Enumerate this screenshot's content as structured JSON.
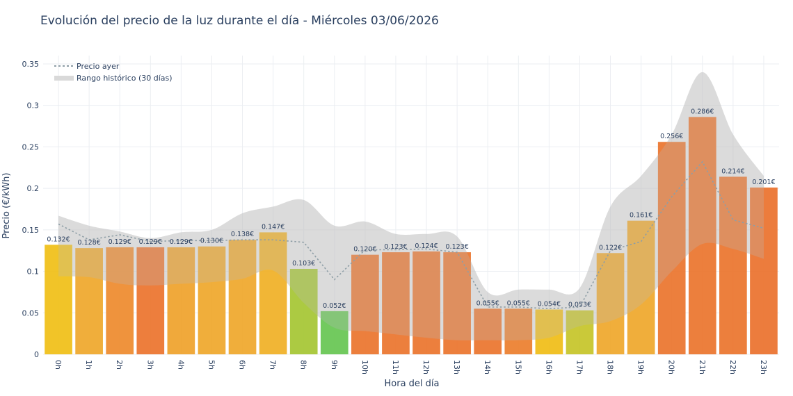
{
  "chart_data": {
    "type": "bar",
    "title": "Evolución del precio de la luz durante el día - Miércoles 03/06/2026",
    "xlabel": "Hora del día",
    "ylabel": "Precio (€/kWh)",
    "ylim": [
      0,
      0.36
    ],
    "yticks": [
      0,
      0.05,
      0.1,
      0.15,
      0.2,
      0.25,
      0.3,
      0.35
    ],
    "ytick_labels": [
      "0",
      "0.05",
      "0.1",
      "0.15",
      "0.2",
      "0.25",
      "0.3",
      "0.35"
    ],
    "grid": true,
    "legend_position": "top-left",
    "categories": [
      "0h",
      "1h",
      "2h",
      "3h",
      "4h",
      "5h",
      "6h",
      "7h",
      "8h",
      "9h",
      "10h",
      "11h",
      "12h",
      "13h",
      "14h",
      "15h",
      "16h",
      "17h",
      "18h",
      "19h",
      "20h",
      "21h",
      "22h",
      "23h"
    ],
    "values": [
      0.132,
      0.128,
      0.129,
      0.129,
      0.129,
      0.13,
      0.138,
      0.147,
      0.103,
      0.052,
      0.12,
      0.123,
      0.124,
      0.123,
      0.055,
      0.055,
      0.054,
      0.053,
      0.122,
      0.161,
      0.256,
      0.286,
      0.214,
      0.201
    ],
    "value_labels": [
      "0.132€",
      "0.128€",
      "0.129€",
      "0.129€",
      "0.129€",
      "0.130€",
      "0.138€",
      "0.147€",
      "0.103€",
      "0.052€",
      "0.120€",
      "0.123€",
      "0.124€",
      "0.123€",
      "0.055€",
      "0.055€",
      "0.054€",
      "0.053€",
      "0.122€",
      "0.161€",
      "0.256€",
      "0.286€",
      "0.214€",
      "0.201€"
    ],
    "bar_colors": [
      "#f0bf16",
      "#efa72a",
      "#ee8a2c",
      "#eb732c",
      "#efa22a",
      "#efa72a",
      "#efa72a",
      "#f0b025",
      "#a5c532",
      "#66c651",
      "#ea742c",
      "#ea742c",
      "#ea742c",
      "#ea742c",
      "#ea742c",
      "#eb7e2c",
      "#f0bd16",
      "#c5c428",
      "#efa72a",
      "#efa72a",
      "#ea742c",
      "#ea742c",
      "#ea742c",
      "#ea712c"
    ],
    "series": [
      {
        "name": "Precio ayer",
        "type": "line",
        "style": "dotted",
        "color": "#8e9ea6",
        "values": [
          0.157,
          0.138,
          0.144,
          0.136,
          0.137,
          0.137,
          0.138,
          0.138,
          0.135,
          0.09,
          0.126,
          0.126,
          0.127,
          0.123,
          0.057,
          0.057,
          0.055,
          0.057,
          0.125,
          0.136,
          0.19,
          0.232,
          0.162,
          0.152
        ]
      },
      {
        "name": "Rango histórico (30 días)",
        "type": "band",
        "color": "#d3d3d3",
        "low": [
          0.094,
          0.093,
          0.085,
          0.083,
          0.085,
          0.087,
          0.091,
          0.101,
          0.062,
          0.032,
          0.028,
          0.024,
          0.02,
          0.017,
          0.017,
          0.017,
          0.02,
          0.034,
          0.04,
          0.06,
          0.1,
          0.133,
          0.127,
          0.115
        ],
        "high": [
          0.167,
          0.155,
          0.148,
          0.14,
          0.147,
          0.15,
          0.17,
          0.178,
          0.186,
          0.155,
          0.16,
          0.145,
          0.145,
          0.142,
          0.075,
          0.078,
          0.078,
          0.08,
          0.178,
          0.215,
          0.265,
          0.34,
          0.265,
          0.215
        ]
      }
    ]
  }
}
